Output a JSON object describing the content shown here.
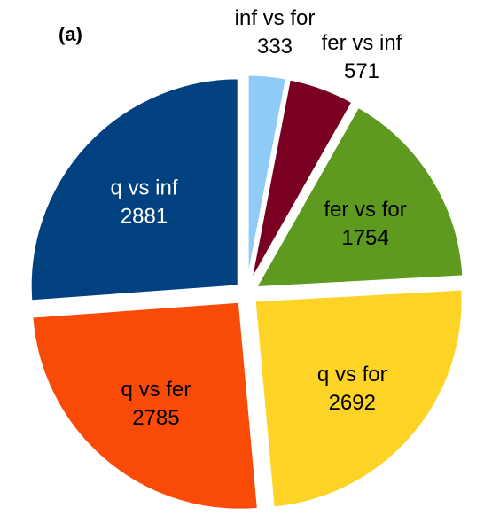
{
  "panel_label": "(a)",
  "chart_data": {
    "type": "pie",
    "title": "",
    "start_angle_deg": 0,
    "direction": "clockwise",
    "exploded": true,
    "slices": [
      {
        "label": "inf vs for",
        "value": 333,
        "color": "#8ecbf7",
        "label_color": "#000000",
        "label_placement": "outside"
      },
      {
        "label": "fer vs inf",
        "value": 571,
        "color": "#7a0022",
        "label_color": "#000000",
        "label_placement": "outside"
      },
      {
        "label": "fer vs for",
        "value": 1754,
        "color": "#5e9a1f",
        "label_color": "#000000",
        "label_placement": "inside"
      },
      {
        "label": "q vs for",
        "value": 2692,
        "color": "#fdd326",
        "label_color": "#000000",
        "label_placement": "inside"
      },
      {
        "label": "q vs fer",
        "value": 2785,
        "color": "#fa4a08",
        "label_color": "#000000",
        "label_placement": "inside"
      },
      {
        "label": "q vs inf",
        "value": 2881,
        "color": "#02417f",
        "label_color": "#ffffff",
        "label_placement": "inside"
      }
    ]
  }
}
